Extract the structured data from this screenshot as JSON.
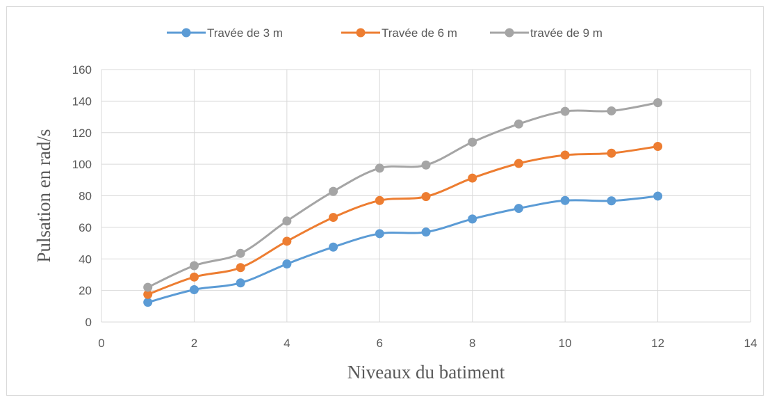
{
  "chart_data": {
    "type": "line",
    "xlabel": "Niveaux du batiment",
    "ylabel": "Pulsation en rad/s",
    "xlim": [
      0,
      14
    ],
    "ylim": [
      0,
      160
    ],
    "x_ticks": [
      0,
      2,
      4,
      6,
      8,
      10,
      12,
      14
    ],
    "y_ticks": [
      0,
      20,
      40,
      60,
      80,
      100,
      120,
      140,
      160
    ],
    "grid": true,
    "legend_position": "top",
    "smooth": true,
    "x": [
      1,
      2,
      3,
      4,
      5,
      6,
      7,
      8,
      9,
      10,
      11,
      12
    ],
    "series": [
      {
        "name": "Travée de 3 m",
        "color": "#5b9bd5",
        "values": [
          12.5,
          20.5,
          24.8,
          36.8,
          47.5,
          56.0,
          57.0,
          65.3,
          72.0,
          77.0,
          76.8,
          79.8
        ]
      },
      {
        "name": "Travée de 6 m",
        "color": "#ed7d31",
        "values": [
          17.5,
          28.5,
          34.5,
          51.2,
          66.3,
          77.0,
          79.5,
          91.2,
          100.5,
          105.8,
          107.0,
          111.3
        ]
      },
      {
        "name": "travée de 9 m",
        "color": "#a5a5a5",
        "values": [
          22.0,
          35.7,
          43.5,
          64.0,
          82.8,
          97.5,
          99.5,
          114.0,
          125.5,
          133.5,
          133.8,
          139.0
        ]
      }
    ]
  }
}
